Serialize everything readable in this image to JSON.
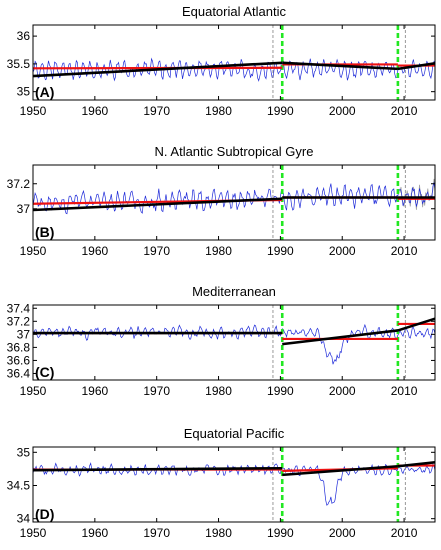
{
  "figure": {
    "panels_count": 4
  },
  "chart_data": [
    {
      "type": "line",
      "letter": "(A)",
      "title": "Equatorial Atlantic",
      "xlabel": "",
      "ylabel": "",
      "xlim": [
        1950,
        2015
      ],
      "ylim": [
        34.85,
        36.2
      ],
      "yticks": [
        35,
        35.5,
        36
      ],
      "ytick_labels": [
        "35",
        "35.5",
        "36"
      ],
      "xticks": [
        1950,
        1960,
        1970,
        1980,
        1990,
        2000,
        2010
      ],
      "xtick_labels": [
        "1950",
        "1960",
        "1970",
        "1980",
        "1990",
        "2000",
        "2010"
      ],
      "series_profile": {
        "base": 35.4,
        "amp": 0.22,
        "noise": 0.12,
        "seed": 11
      },
      "breakpoints": [
        1990.3,
        2009.0
      ],
      "dashed_marks": [
        1988.8,
        2010.2
      ],
      "red_segments": [
        {
          "x": [
            1950,
            1990.3
          ],
          "y": [
            35.42,
            35.43
          ]
        },
        {
          "x": [
            1990.3,
            2009.0
          ],
          "y": [
            35.49,
            35.49
          ]
        },
        {
          "x": [
            2009.0,
            2015
          ],
          "y": [
            35.47,
            35.47
          ]
        }
      ],
      "black_segments": [
        {
          "x": [
            1950,
            1990.3
          ],
          "y": [
            35.28,
            35.52
          ]
        },
        {
          "x": [
            1990.3,
            2009.0
          ],
          "y": [
            35.52,
            35.41
          ]
        },
        {
          "x": [
            2009.0,
            2015
          ],
          "y": [
            35.41,
            35.51
          ]
        }
      ]
    },
    {
      "type": "line",
      "letter": "(B)",
      "title": "N. Atlantic Subtropical Gyre",
      "xlabel": "",
      "ylabel": "",
      "xlim": [
        1950,
        2015
      ],
      "ylim": [
        36.75,
        37.35
      ],
      "yticks": [
        37,
        37.2
      ],
      "ytick_labels": [
        "37",
        "37.2"
      ],
      "xticks": [
        1950,
        1960,
        1970,
        1980,
        1990,
        2000,
        2010
      ],
      "xtick_labels": [
        "1950",
        "1960",
        "1970",
        "1980",
        "1990",
        "2000",
        "2010"
      ],
      "series_profile": {
        "base": 37.04,
        "amp": 0.1,
        "noise": 0.07,
        "seed": 23,
        "trend": 0.0012
      },
      "breakpoints": [
        1990.3,
        2009.0
      ],
      "dashed_marks": [
        1988.8,
        2010.2
      ],
      "gray_tail": true,
      "red_segments": [
        {
          "x": [
            1950,
            1990.3
          ],
          "y": [
            37.04,
            37.07
          ]
        },
        {
          "x": [
            1990.3,
            2009.0
          ],
          "y": [
            37.09,
            37.09
          ]
        },
        {
          "x": [
            2009.0,
            2015
          ],
          "y": [
            37.08,
            37.08
          ]
        }
      ],
      "black_segments": [
        {
          "x": [
            1950,
            1990.3
          ],
          "y": [
            36.99,
            37.08
          ]
        },
        {
          "x": [
            1990.3,
            2015
          ],
          "y": [
            37.09,
            37.09
          ]
        }
      ]
    },
    {
      "type": "line",
      "letter": "(C)",
      "title": "Mediterranean",
      "xlabel": "",
      "ylabel": "",
      "xlim": [
        1950,
        2015
      ],
      "ylim": [
        36.3,
        37.45
      ],
      "yticks": [
        36.4,
        36.6,
        36.8,
        37,
        37.2,
        37.4
      ],
      "ytick_labels": [
        "36.4",
        "36.6",
        "36.8",
        "37",
        "37.2",
        "37.4"
      ],
      "xticks": [
        1950,
        1960,
        1970,
        1980,
        1990,
        2000,
        2010
      ],
      "xtick_labels": [
        "1950",
        "1960",
        "1970",
        "1980",
        "1990",
        "2000",
        "2010"
      ],
      "series_profile": {
        "base": 37.03,
        "amp": 0.1,
        "noise": 0.08,
        "seed": 37
      },
      "breakpoints": [
        1990.3,
        2009.0
      ],
      "dashed_marks": [
        1988.8,
        2010.2
      ],
      "dip": {
        "x": 1998.5,
        "depth": 0.55,
        "width": 1.6
      },
      "red_segments": [
        {
          "x": [
            1950,
            1990.3
          ],
          "y": [
            37.02,
            37.02
          ]
        },
        {
          "x": [
            1990.3,
            2009.0
          ],
          "y": [
            36.93,
            36.93
          ]
        },
        {
          "x": [
            2009.0,
            2015
          ],
          "y": [
            37.16,
            37.16
          ]
        }
      ],
      "black_segments": [
        {
          "x": [
            1950,
            1990.3
          ],
          "y": [
            37.02,
            37.02
          ]
        },
        {
          "x": [
            1990.3,
            2009.0
          ],
          "y": [
            36.85,
            37.06
          ]
        },
        {
          "x": [
            2009.0,
            2015
          ],
          "y": [
            37.06,
            37.24
          ]
        }
      ]
    },
    {
      "type": "line",
      "letter": "(D)",
      "title": "Equatorial Pacific",
      "xlabel": "",
      "ylabel": "",
      "xlim": [
        1950,
        2015
      ],
      "ylim": [
        33.95,
        35.08
      ],
      "yticks": [
        34,
        34.5,
        35
      ],
      "ytick_labels": [
        "34",
        "34.5",
        "35"
      ],
      "xticks": [
        1950,
        1960,
        1970,
        1980,
        1990,
        2000,
        2010
      ],
      "xtick_labels": [
        "1950",
        "1960",
        "1970",
        "1980",
        "1990",
        "2000",
        "2010"
      ],
      "series_profile": {
        "base": 34.74,
        "amp": 0.08,
        "noise": 0.08,
        "seed": 53
      },
      "breakpoints": [
        1990.3,
        2009.0
      ],
      "dashed_marks": [
        1988.8,
        2010.2
      ],
      "dip": {
        "x": 1998.0,
        "depth": 0.7,
        "width": 1.2
      },
      "red_segments": [
        {
          "x": [
            1950,
            1990.3
          ],
          "y": [
            34.74,
            34.74
          ]
        },
        {
          "x": [
            1990.3,
            2009.0
          ],
          "y": [
            34.72,
            34.76
          ]
        },
        {
          "x": [
            2009.0,
            2015
          ],
          "y": [
            34.8,
            34.8
          ]
        }
      ],
      "black_segments": [
        {
          "x": [
            1950,
            1990.3
          ],
          "y": [
            34.73,
            34.76
          ]
        },
        {
          "x": [
            1990.3,
            2009.0
          ],
          "y": [
            34.66,
            34.79
          ]
        },
        {
          "x": [
            2009.0,
            2015
          ],
          "y": [
            34.79,
            34.85
          ]
        }
      ]
    }
  ],
  "colors": {
    "series": "#1f2bd9",
    "series_tail": "#a0a0a0",
    "red_fit": "#ee1111",
    "black_fit": "#000000",
    "breakpoint": "#22e822",
    "dashed_mark": "#808080",
    "axis": "#000000"
  }
}
